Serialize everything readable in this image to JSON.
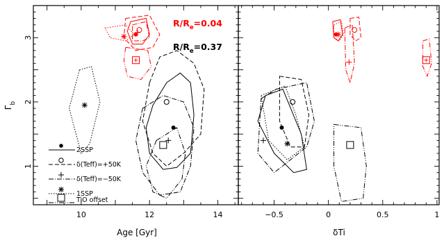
{
  "chart_data": [
    {
      "type": "scatter",
      "panel": "left",
      "xlabel": "Age [Gyr]",
      "ylabel": "Γ",
      "ylabel_sub": "b",
      "xlim": [
        8.6,
        14.6
      ],
      "ylim": [
        0.4,
        3.5
      ],
      "xticks": [
        "10",
        "12",
        "14"
      ],
      "yticks": [
        "1",
        "2",
        "3"
      ],
      "annotations": [
        {
          "main": "R/R",
          "sub": "e",
          "tail": "=0.04",
          "color": "#ff0000"
        },
        {
          "main": "R/R",
          "sub": "e",
          "tail": "=0.37",
          "color": "#000000"
        }
      ],
      "legend": {
        "placement": "bottom-left",
        "entries": [
          {
            "label": "2SSP",
            "marker": "filled-circle",
            "line": "solid"
          },
          {
            "label": "δ(Teff)=+50K",
            "marker": "open-circle",
            "line": "dashed"
          },
          {
            "label": "δ(Teff)=−50K",
            "marker": "plus",
            "line": "dash-dot"
          },
          {
            "label": "1SSP",
            "marker": "asterisk",
            "line": "dotted"
          },
          {
            "label": "TiO offset",
            "marker": "open-square",
            "line": "dash-dot-dot"
          }
        ]
      },
      "series": [
        {
          "name": "2SSP",
          "group": "R/Re=0.37",
          "color": "#000000",
          "marker": "filled-circle",
          "point": [
            12.7,
            1.6
          ],
          "contour": [
            [
              12.1,
              1.95
            ],
            [
              12.5,
              2.3
            ],
            [
              12.9,
              2.45
            ],
            [
              13.2,
              2.3
            ],
            [
              13.3,
              1.8
            ],
            [
              13.2,
              1.2
            ],
            [
              12.8,
              0.98
            ],
            [
              12.4,
              0.95
            ],
            [
              12.0,
              1.2
            ],
            [
              11.9,
              1.6
            ]
          ]
        },
        {
          "name": "δ(Teff)=+50K",
          "group": "R/Re=0.37",
          "color": "#000000",
          "marker": "open-circle",
          "point": [
            12.5,
            2.0
          ],
          "contour": [
            [
              12.0,
              2.3
            ],
            [
              12.3,
              2.7
            ],
            [
              12.8,
              2.8
            ],
            [
              13.3,
              2.6
            ],
            [
              13.6,
              2.2
            ],
            [
              13.5,
              1.5
            ],
            [
              13.0,
              1.2
            ],
            [
              12.5,
              1.0
            ],
            [
              12.1,
              1.2
            ],
            [
              11.8,
              1.7
            ]
          ]
        },
        {
          "name": "δ(Teff)=−50K",
          "group": "R/Re=0.37",
          "color": "#000000",
          "marker": "plus",
          "point": [
            12.55,
            1.4
          ],
          "contour": [
            [
              11.8,
              1.9
            ],
            [
              12.4,
              2.1
            ],
            [
              13.0,
              2.0
            ],
            [
              13.3,
              1.6
            ],
            [
              13.2,
              1.0
            ],
            [
              12.9,
              0.6
            ],
            [
              12.3,
              0.55
            ],
            [
              11.8,
              0.9
            ],
            [
              11.6,
              1.4
            ]
          ]
        },
        {
          "name": "1SSP",
          "group": "R/Re=0.37",
          "color": "#000000",
          "marker": "asterisk",
          "point": [
            10.1,
            1.95
          ],
          "contour": [
            [
              9.95,
              2.5
            ],
            [
              10.3,
              2.55
            ],
            [
              10.55,
              2.0
            ],
            [
              10.25,
              1.35
            ],
            [
              10.0,
              1.2
            ],
            [
              9.65,
              1.9
            ]
          ]
        },
        {
          "name": "TiO offset",
          "group": "R/Re=0.37",
          "color": "#000000",
          "marker": "open-square",
          "point": [
            12.4,
            1.33
          ],
          "contour": [
            [
              12.2,
              1.4
            ],
            [
              12.8,
              1.6
            ],
            [
              13.05,
              1.2
            ],
            [
              12.95,
              0.8
            ],
            [
              12.5,
              0.5
            ],
            [
              12.1,
              0.6
            ],
            [
              11.9,
              1.0
            ]
          ]
        },
        {
          "name": "2SSP",
          "group": "R/Re=0.04",
          "color": "#ff0000",
          "marker": "filled-circle",
          "point": [
            11.6,
            3.05
          ],
          "contour": [
            [
              11.45,
              3.25
            ],
            [
              11.9,
              3.3
            ],
            [
              12.0,
              3.05
            ],
            [
              11.8,
              2.9
            ],
            [
              11.5,
              2.9
            ],
            [
              11.35,
              3.1
            ]
          ]
        },
        {
          "name": "δ(Teff)=+50K",
          "group": "R/Re=0.04",
          "color": "#ff0000",
          "marker": "open-circle",
          "point": [
            11.7,
            3.12
          ],
          "contour": [
            [
              11.3,
              3.3
            ],
            [
              12.0,
              3.35
            ],
            [
              12.3,
              3.05
            ],
            [
              12.1,
              2.85
            ],
            [
              11.6,
              2.8
            ],
            [
              11.25,
              3.0
            ]
          ]
        },
        {
          "name": "δ(Teff)=−50K",
          "group": "R/Re=0.04",
          "color": "#ff0000",
          "marker": "plus",
          "point": [
            11.65,
            3.08
          ],
          "contour": [
            [
              11.5,
              3.2
            ],
            [
              11.9,
              3.25
            ],
            [
              12.0,
              3.0
            ],
            [
              11.8,
              2.95
            ],
            [
              11.5,
              2.95
            ]
          ]
        },
        {
          "name": "1SSP",
          "group": "R/Re=0.04",
          "color": "#ff0000",
          "marker": "asterisk",
          "point": [
            11.25,
            3.02
          ],
          "contour": [
            [
              10.7,
              3.15
            ],
            [
              11.3,
              3.2
            ],
            [
              11.55,
              3.05
            ],
            [
              11.3,
              2.95
            ],
            [
              10.85,
              3.0
            ]
          ]
        },
        {
          "name": "TiO offset",
          "group": "R/Re=0.04",
          "color": "#ff0000",
          "marker": "open-square",
          "point": [
            11.6,
            2.65
          ],
          "contour": [
            [
              11.3,
              2.85
            ],
            [
              11.95,
              2.8
            ],
            [
              12.05,
              2.55
            ],
            [
              11.75,
              2.35
            ],
            [
              11.35,
              2.4
            ],
            [
              11.25,
              2.65
            ]
          ]
        }
      ]
    },
    {
      "type": "scatter",
      "panel": "right",
      "xlabel": "δTi",
      "xlim": [
        -0.83,
        1.02
      ],
      "ylim": [
        0.4,
        3.5
      ],
      "xticks": [
        "−0.5",
        "0",
        "0.5",
        "1"
      ],
      "series": [
        {
          "name": "2SSP",
          "group": "R/Re=0.37",
          "color": "#000000",
          "marker": "filled-circle",
          "point": [
            -0.43,
            1.6
          ],
          "contour": [
            [
              -0.58,
              2.1
            ],
            [
              -0.42,
              2.2
            ],
            [
              -0.25,
              1.5
            ],
            [
              -0.2,
              0.95
            ],
            [
              -0.32,
              0.9
            ],
            [
              -0.5,
              1.2
            ],
            [
              -0.65,
              1.7
            ]
          ]
        },
        {
          "name": "δ(Teff)=+50K",
          "group": "R/Re=0.37",
          "color": "#000000",
          "marker": "open-circle",
          "point": [
            -0.33,
            2.0
          ],
          "contour": [
            [
              -0.45,
              2.4
            ],
            [
              -0.25,
              2.35
            ],
            [
              -0.18,
              1.8
            ],
            [
              -0.22,
              1.3
            ],
            [
              -0.35,
              1.3
            ],
            [
              -0.45,
              1.7
            ]
          ]
        },
        {
          "name": "δ(Teff)=−50K",
          "group": "R/Re=0.37",
          "color": "#000000",
          "marker": "plus",
          "point": [
            -0.6,
            1.4
          ],
          "contour": [
            [
              -0.62,
              2.05
            ],
            [
              -0.48,
              2.2
            ],
            [
              -0.2,
              2.3
            ],
            [
              -0.13,
              1.7
            ],
            [
              -0.2,
              1.3
            ],
            [
              -0.5,
              0.9
            ],
            [
              -0.65,
              1.2
            ]
          ]
        },
        {
          "name": "1SSP",
          "group": "R/Re=0.37",
          "color": "#000000",
          "marker": "asterisk",
          "point": [
            -0.38,
            1.35
          ],
          "contour": [
            [
              -0.62,
              2.1
            ],
            [
              -0.4,
              2.25
            ],
            [
              -0.3,
              1.8
            ],
            [
              -0.22,
              1.3
            ],
            [
              -0.38,
              1.1
            ],
            [
              -0.55,
              1.4
            ]
          ]
        },
        {
          "name": "TiO offset",
          "group": "R/Re=0.37",
          "color": "#000000",
          "marker": "open-square",
          "point": [
            0.2,
            1.33
          ],
          "contour": [
            [
              0.05,
              1.65
            ],
            [
              0.3,
              1.6
            ],
            [
              0.35,
              1.0
            ],
            [
              0.32,
              0.5
            ],
            [
              0.12,
              0.45
            ],
            [
              0.05,
              1.0
            ]
          ]
        },
        {
          "name": "2SSP",
          "group": "R/Re=0.04",
          "color": "#ff0000",
          "marker": "filled-circle",
          "point": [
            0.07,
            3.05
          ],
          "contour": [
            [
              0.04,
              3.25
            ],
            [
              0.11,
              3.28
            ],
            [
              0.13,
              3.05
            ],
            [
              0.09,
              2.95
            ],
            [
              0.05,
              3.0
            ]
          ]
        },
        {
          "name": "δ(Teff)=+50K",
          "group": "R/Re=0.04",
          "color": "#ff0000",
          "marker": "open-circle",
          "point": [
            0.24,
            3.12
          ],
          "contour": [
            [
              0.2,
              3.3
            ],
            [
              0.28,
              3.32
            ],
            [
              0.3,
              3.0
            ],
            [
              0.25,
              2.95
            ],
            [
              0.2,
              3.05
            ]
          ]
        },
        {
          "name": "δ(Teff)=−50K",
          "group": "R/Re=0.04",
          "color": "#ff0000",
          "marker": "plus",
          "point": [
            0.19,
            2.62
          ],
          "contour": [
            [
              0.15,
              3.15
            ],
            [
              0.22,
              3.2
            ],
            [
              0.24,
              2.6
            ],
            [
              0.2,
              2.3
            ],
            [
              0.16,
              2.5
            ]
          ]
        },
        {
          "name": "1SSP",
          "group": "R/Re=0.04",
          "color": "#ff0000",
          "marker": "asterisk",
          "point": [
            0.09,
            3.05
          ],
          "contour": [
            [
              0.05,
              3.2
            ],
            [
              0.12,
              3.25
            ],
            [
              0.14,
              3.05
            ],
            [
              0.1,
              2.95
            ],
            [
              0.05,
              3.0
            ]
          ]
        },
        {
          "name": "TiO offset",
          "group": "R/Re=0.04",
          "color": "#ff0000",
          "marker": "open-square",
          "point": [
            0.9,
            2.65
          ],
          "contour": [
            [
              0.87,
              2.95
            ],
            [
              0.93,
              2.98
            ],
            [
              0.95,
              2.6
            ],
            [
              0.91,
              2.4
            ],
            [
              0.87,
              2.55
            ]
          ]
        }
      ]
    }
  ]
}
